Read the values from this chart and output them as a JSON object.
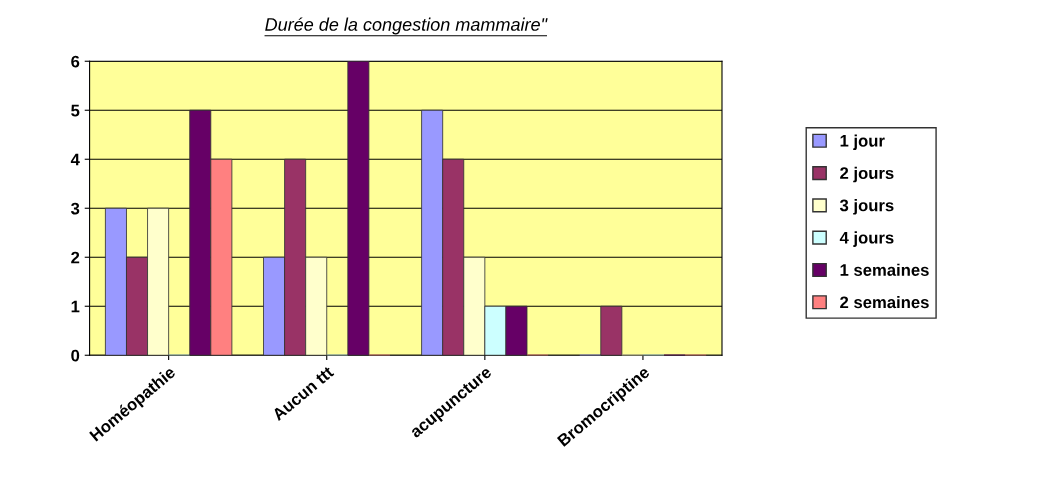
{
  "chart_data": {
    "type": "bar",
    "title": "Durée de la congestion mammaire\"",
    "categories": [
      "Homéopathie",
      "Aucun ttt",
      "acupuncture",
      "Bromocriptine"
    ],
    "series": [
      {
        "name": "1 jour",
        "color": "#9999ff",
        "values": [
          3,
          2,
          5,
          0
        ]
      },
      {
        "name": "2 jours",
        "color": "#993366",
        "values": [
          2,
          4,
          4,
          1
        ]
      },
      {
        "name": "3 jours",
        "color": "#ffffcc",
        "values": [
          3,
          2,
          2,
          0
        ]
      },
      {
        "name": "4 jours",
        "color": "#ccffff",
        "values": [
          0,
          0,
          1,
          0
        ]
      },
      {
        "name": "1 semaines",
        "color": "#660066",
        "values": [
          5,
          6,
          1,
          0
        ]
      },
      {
        "name": "2 semaines",
        "color": "#ff8080",
        "values": [
          4,
          0,
          0,
          0
        ]
      }
    ],
    "ylim": [
      0,
      6
    ],
    "yticks": [
      0,
      1,
      2,
      3,
      4,
      5,
      6
    ],
    "grid": "y",
    "legend": "right"
  }
}
